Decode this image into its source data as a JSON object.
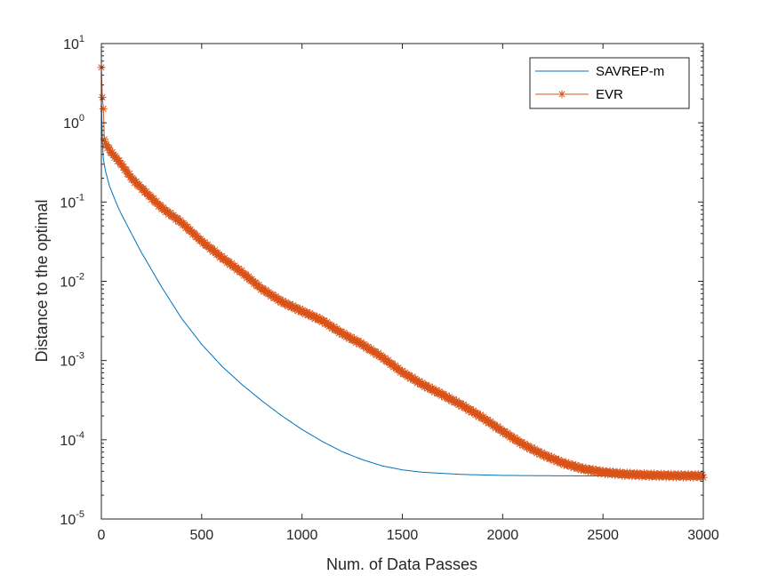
{
  "chart_data": {
    "type": "line",
    "title": "",
    "xlabel": "Num. of Data Passes",
    "ylabel": "Distance to the optimal",
    "xlim": [
      0,
      3000
    ],
    "ylim": [
      1e-05,
      10
    ],
    "yscale": "log",
    "xticks": [
      0,
      500,
      1000,
      1500,
      2000,
      2500,
      3000
    ],
    "xtick_labels": [
      "0",
      "500",
      "1000",
      "1500",
      "2000",
      "2500",
      "3000"
    ],
    "yticks": [
      {
        "value": 1e-05,
        "base": "10",
        "exp": "-5"
      },
      {
        "value": 0.0001,
        "base": "10",
        "exp": "-4"
      },
      {
        "value": 0.001,
        "base": "10",
        "exp": "-3"
      },
      {
        "value": 0.01,
        "base": "10",
        "exp": "-2"
      },
      {
        "value": 0.1,
        "base": "10",
        "exp": "-1"
      },
      {
        "value": 1,
        "base": "10",
        "exp": "0"
      },
      {
        "value": 10,
        "base": "10",
        "exp": "1"
      }
    ],
    "legend_position": "top-right",
    "series": [
      {
        "name": "SAVREP-m",
        "color": "#0072BD",
        "marker": "none",
        "x": [
          0,
          5,
          10,
          20,
          40,
          60,
          80,
          100,
          150,
          200,
          250,
          300,
          400,
          500,
          600,
          700,
          800,
          900,
          1000,
          1100,
          1200,
          1300,
          1400,
          1500,
          1600,
          1800,
          2000,
          2200,
          2400,
          2600,
          2800,
          3000
        ],
        "y": [
          2.0,
          0.6,
          0.35,
          0.25,
          0.16,
          0.12,
          0.09,
          0.07,
          0.04,
          0.023,
          0.014,
          0.0085,
          0.0034,
          0.0016,
          0.00085,
          0.0005,
          0.00031,
          0.0002,
          0.000135,
          9.55e-05,
          7.08e-05,
          5.62e-05,
          4.68e-05,
          4.17e-05,
          3.89e-05,
          3.65e-05,
          3.55e-05,
          3.52e-05,
          3.5e-05,
          3.49e-05,
          3.48e-05,
          3.48e-05
        ]
      },
      {
        "name": "EVR",
        "color": "#D95319",
        "marker": "asterisk",
        "x": [
          0,
          5,
          10,
          15,
          20,
          50,
          100,
          150,
          200,
          300,
          400,
          500,
          600,
          700,
          800,
          900,
          1000,
          1100,
          1200,
          1300,
          1400,
          1500,
          1600,
          1700,
          1800,
          1900,
          2000,
          2100,
          2200,
          2300,
          2400,
          2500,
          2600,
          2700,
          2800,
          2900,
          3000
        ],
        "y": [
          5.0,
          2.1,
          1.5,
          0.62,
          0.55,
          0.42,
          0.3,
          0.2,
          0.15,
          0.085,
          0.055,
          0.032,
          0.02,
          0.013,
          0.008,
          0.0055,
          0.0042,
          0.0032,
          0.0022,
          0.0016,
          0.0011,
          0.00071,
          0.0005,
          0.00037,
          0.00027,
          0.00019,
          0.000128,
          8.8e-05,
          6.5e-05,
          5.1e-05,
          4.3e-05,
          3.9e-05,
          3.7e-05,
          3.6e-05,
          3.55e-05,
          3.52e-05,
          3.5e-05
        ]
      }
    ]
  }
}
